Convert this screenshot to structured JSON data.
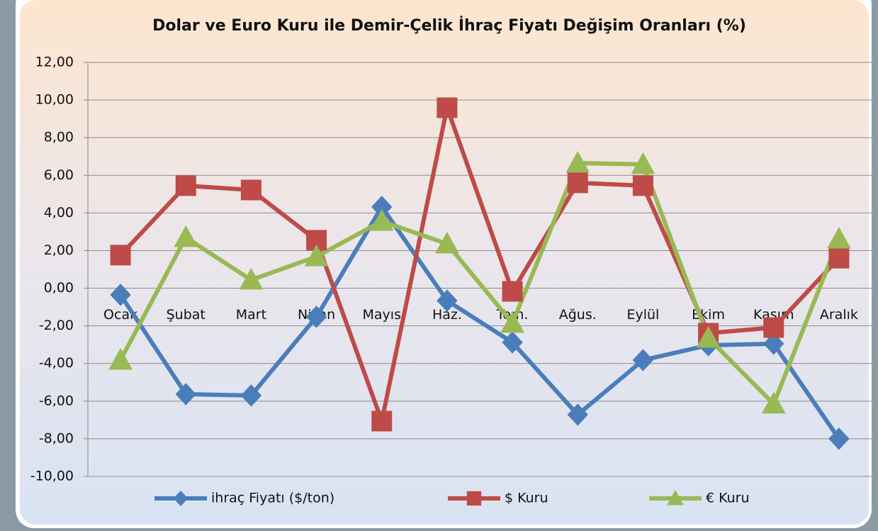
{
  "chart_data": {
    "type": "line",
    "title": "Dolar ve Euro Kuru ile Demir-Çelik İhraç Fiyatı Değişim Oranları (%)",
    "categories": [
      "Ocak",
      "Şubat",
      "Mart",
      "Nisan",
      "Mayıs",
      "Haz.",
      "Tem.",
      "Ağus.",
      "Eylül",
      "Ekim",
      "Kasım",
      "Aralık"
    ],
    "series": [
      {
        "name": "ihraç Fiyatı ($/ton)",
        "color": "#4a7ebb",
        "marker": "diamond",
        "values": [
          -0.35,
          -5.63,
          -5.7,
          -1.52,
          4.32,
          -0.66,
          -2.88,
          -6.72,
          -3.82,
          -3.03,
          -2.95,
          -8.0
        ]
      },
      {
        "name": "$ Kuru",
        "color": "#be4b48",
        "marker": "square",
        "values": [
          1.76,
          5.45,
          5.22,
          2.55,
          -7.06,
          9.59,
          -0.17,
          5.6,
          5.45,
          -2.39,
          -2.09,
          1.6
        ]
      },
      {
        "name": "€ Kuru",
        "color": "#98b954",
        "marker": "triangle",
        "values": [
          -3.82,
          2.7,
          0.44,
          1.68,
          3.56,
          2.36,
          -1.86,
          6.65,
          6.58,
          -2.65,
          -6.15,
          2.62
        ]
      }
    ],
    "ylim": [
      -10,
      12
    ],
    "yticks": [
      {
        "value": -10,
        "label": "-10,00"
      },
      {
        "value": -8,
        "label": "-8,00"
      },
      {
        "value": -6,
        "label": "-6,00"
      },
      {
        "value": -4,
        "label": "-4,00"
      },
      {
        "value": -2,
        "label": "-2,00"
      },
      {
        "value": 0,
        "label": "0,00"
      },
      {
        "value": 2,
        "label": "2,00"
      },
      {
        "value": 4,
        "label": "4,00"
      },
      {
        "value": 6,
        "label": "6,00"
      },
      {
        "value": 8,
        "label": "8,00"
      },
      {
        "value": 10,
        "label": "10,00"
      },
      {
        "value": 12,
        "label": "12,00"
      }
    ],
    "grid": true,
    "legend": "bottom"
  }
}
